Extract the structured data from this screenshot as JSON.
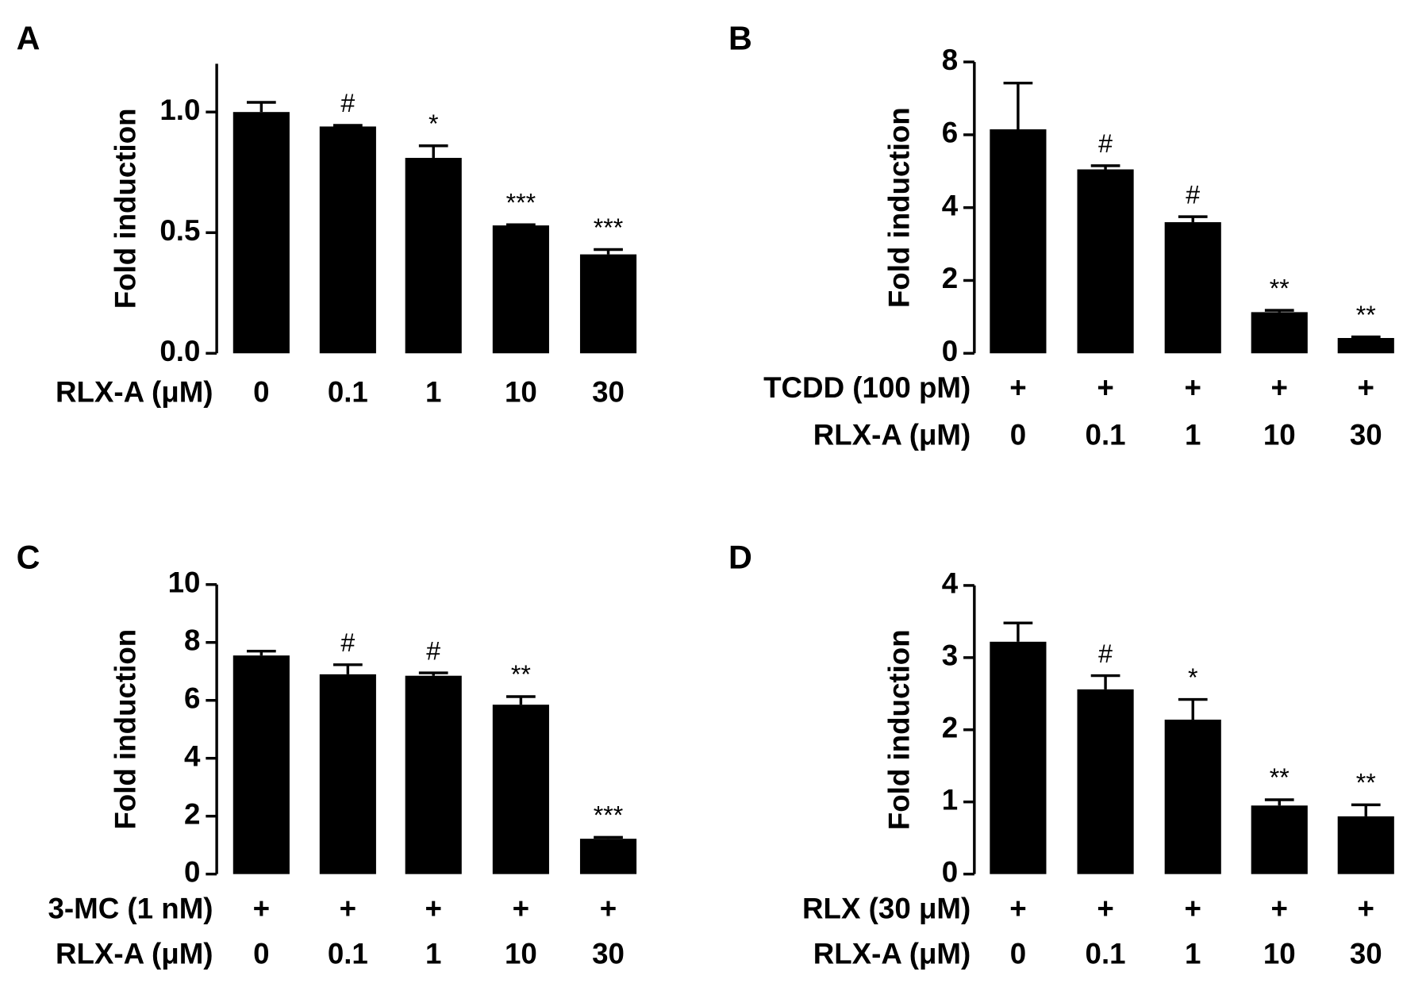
{
  "chart_data": [
    {
      "type": "bar",
      "panel": "A",
      "ylabel": "Fold induction",
      "color": "#000000",
      "ylim": [
        0,
        1.2
      ],
      "yticks": [
        {
          "value": 0,
          "label": "0.0"
        },
        {
          "value": 0.5,
          "label": "0.5"
        },
        {
          "value": 1,
          "label": "1.0"
        }
      ],
      "category_label": "RLX-A (μM)",
      "categories": [
        "0",
        "0.1",
        "1",
        "10",
        "30"
      ],
      "values": [
        1.0,
        0.94,
        0.81,
        0.53,
        0.41
      ],
      "errors": [
        0.04,
        0.005,
        0.05,
        0.003,
        0.02
      ],
      "annotations": [
        null,
        "#",
        "*",
        "***",
        "***"
      ]
    },
    {
      "type": "bar",
      "panel": "B",
      "ylabel": "Fold induction",
      "color": "#000000",
      "ylim": [
        0,
        8
      ],
      "yticks": [
        0,
        2,
        4,
        6,
        8
      ],
      "treatment_label": "TCDD (100 pM)",
      "treatment_marks": [
        "+",
        "+",
        "+",
        "+",
        "+"
      ],
      "category_label": "RLX-A (μM)",
      "categories": [
        "0",
        "0.1",
        "1",
        "10",
        "30"
      ],
      "values": [
        6.15,
        5.05,
        3.6,
        1.13,
        0.42
      ],
      "errors": [
        1.27,
        0.1,
        0.15,
        0.05,
        0.03
      ],
      "annotations": [
        null,
        "#",
        "#",
        "**",
        "**"
      ]
    },
    {
      "type": "bar",
      "panel": "C",
      "ylabel": "Fold induction",
      "color": "#000000",
      "ylim": [
        0,
        10
      ],
      "yticks": [
        0,
        2,
        4,
        6,
        8,
        10
      ],
      "treatment_label": "3-MC (1 nM)",
      "treatment_marks": [
        "+",
        "+",
        "+",
        "+",
        "+"
      ],
      "category_label": "RLX-A (μM)",
      "categories": [
        "0",
        "0.1",
        "1",
        "10",
        "30"
      ],
      "values": [
        7.55,
        6.9,
        6.85,
        5.85,
        1.22
      ],
      "errors": [
        0.15,
        0.33,
        0.1,
        0.28,
        0.05
      ],
      "annotations": [
        null,
        "#",
        "#",
        "**",
        "***"
      ]
    },
    {
      "type": "bar",
      "panel": "D",
      "ylabel": "Fold induction",
      "color": "#000000",
      "ylim": [
        0,
        4
      ],
      "yticks": [
        0,
        1,
        2,
        3,
        4
      ],
      "treatment_label": "RLX (30 μM)",
      "treatment_marks": [
        "+",
        "+",
        "+",
        "+",
        "+"
      ],
      "category_label": "RLX-A (μM)",
      "categories": [
        "0",
        "0.1",
        "1",
        "10",
        "30"
      ],
      "values": [
        3.22,
        2.56,
        2.14,
        0.95,
        0.8
      ],
      "errors": [
        0.26,
        0.19,
        0.28,
        0.08,
        0.16
      ],
      "annotations": [
        null,
        "#",
        "*",
        "**",
        "**"
      ]
    }
  ]
}
